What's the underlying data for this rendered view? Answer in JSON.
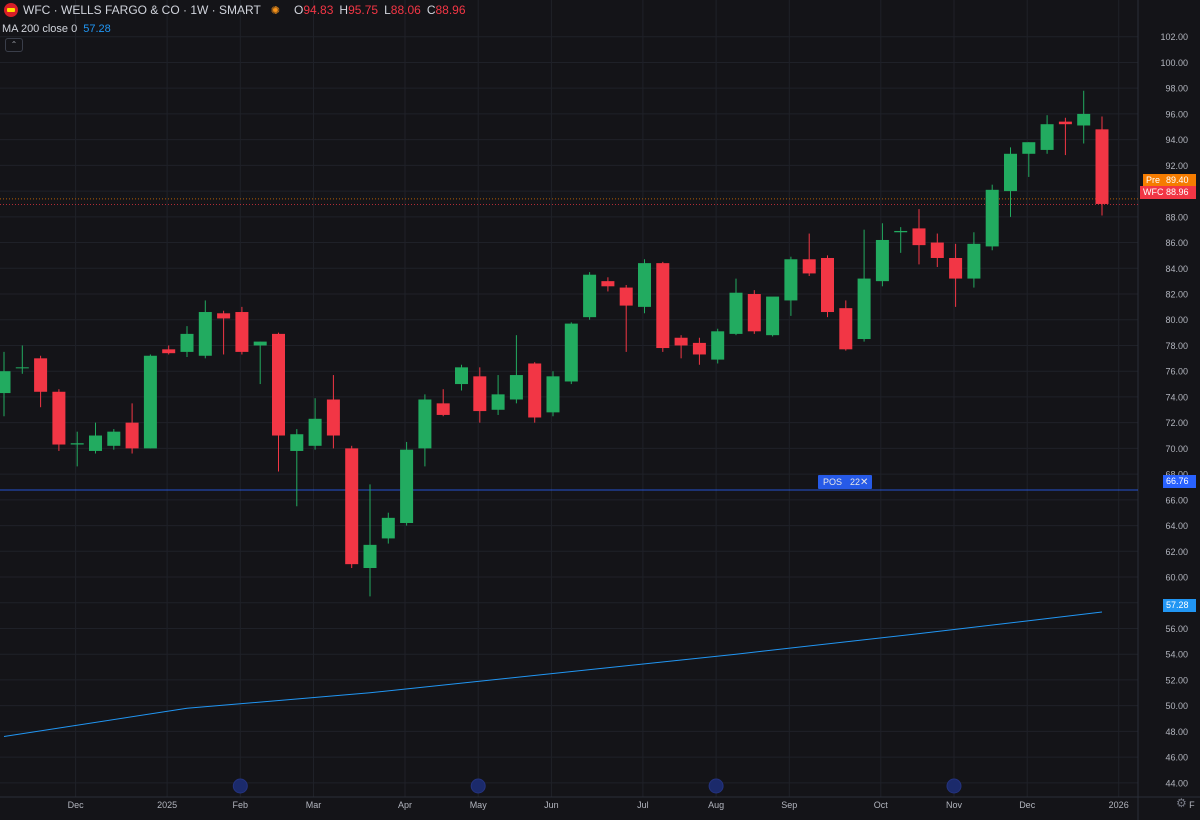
{
  "header": {
    "symbol_title": "WFC · WELLS FARGO & CO · 1W · SMART",
    "open_label": "O",
    "open": "94.83",
    "high_label": "H",
    "high": "95.75",
    "low_label": "L",
    "low": "88.06",
    "close_label": "C",
    "close": "88.96"
  },
  "indicator": {
    "name": "MA 200 close 0",
    "value": "57.28"
  },
  "price_tags": {
    "pre_label": "Pre",
    "pre_value": "89.40",
    "last_label": "WFC",
    "last_value": "88.96",
    "position_value": "66.76",
    "ma_value": "57.28"
  },
  "position": {
    "label": "POS",
    "qty": "22",
    "close_symbol": "✕"
  },
  "colors": {
    "up": "#22ab60",
    "down": "#f23645",
    "ma": "#2196f3",
    "position": "#2962ff",
    "pre": "#f57c00"
  },
  "chart_data": {
    "type": "candlestick",
    "timeframe": "1W",
    "y_ticks": [
      44,
      46,
      48,
      50,
      52,
      54,
      56,
      58,
      60,
      62,
      64,
      66,
      68,
      70,
      72,
      74,
      76,
      78,
      80,
      82,
      84,
      86,
      88,
      90,
      92,
      94,
      96,
      98,
      100,
      102
    ],
    "ylim": [
      42.9,
      103.3
    ],
    "x_ticks": [
      {
        "label": "Dec",
        "week": 2
      },
      {
        "label": "2025",
        "week": 7
      },
      {
        "label": "Feb",
        "week": 11
      },
      {
        "label": "Mar",
        "week": 15
      },
      {
        "label": "Apr",
        "week": 20
      },
      {
        "label": "May",
        "week": 24
      },
      {
        "label": "Jun",
        "week": 28
      },
      {
        "label": "Jul",
        "week": 33
      },
      {
        "label": "Aug",
        "week": 37
      },
      {
        "label": "Sep",
        "week": 41
      },
      {
        "label": "Oct",
        "week": 46
      },
      {
        "label": "Nov",
        "week": 50
      },
      {
        "label": "Dec",
        "week": 54
      },
      {
        "label": "2026",
        "week": 59
      },
      {
        "label": "F",
        "week": 63
      }
    ],
    "event_markers": [
      11,
      24,
      37,
      50
    ],
    "candles": [
      {
        "o": 74.3,
        "h": 77.5,
        "l": 72.5,
        "c": 76.0
      },
      {
        "o": 76.3,
        "h": 78.0,
        "l": 75.8,
        "c": 76.3
      },
      {
        "o": 77.0,
        "h": 77.2,
        "l": 73.2,
        "c": 74.4
      },
      {
        "o": 74.4,
        "h": 74.6,
        "l": 69.8,
        "c": 70.3
      },
      {
        "o": 70.3,
        "h": 71.3,
        "l": 68.6,
        "c": 70.4
      },
      {
        "o": 69.8,
        "h": 72.0,
        "l": 69.6,
        "c": 71.0
      },
      {
        "o": 70.2,
        "h": 71.5,
        "l": 69.9,
        "c": 71.3
      },
      {
        "o": 72.0,
        "h": 73.5,
        "l": 69.6,
        "c": 70.0
      },
      {
        "o": 70.0,
        "h": 77.3,
        "l": 70.0,
        "c": 77.2
      },
      {
        "o": 77.7,
        "h": 78.0,
        "l": 77.3,
        "c": 77.4
      },
      {
        "o": 77.5,
        "h": 79.5,
        "l": 77.1,
        "c": 78.9
      },
      {
        "o": 77.2,
        "h": 81.5,
        "l": 77.0,
        "c": 80.6
      },
      {
        "o": 80.5,
        "h": 80.7,
        "l": 77.3,
        "c": 80.1
      },
      {
        "o": 80.6,
        "h": 81.0,
        "l": 77.3,
        "c": 77.5
      },
      {
        "o": 78.0,
        "h": 78.3,
        "l": 75.0,
        "c": 78.3
      },
      {
        "o": 78.9,
        "h": 79.0,
        "l": 68.2,
        "c": 71.0
      },
      {
        "o": 69.8,
        "h": 71.5,
        "l": 65.5,
        "c": 71.1
      },
      {
        "o": 70.2,
        "h": 73.9,
        "l": 69.9,
        "c": 72.3
      },
      {
        "o": 73.8,
        "h": 75.7,
        "l": 70.0,
        "c": 71.0
      },
      {
        "o": 70.0,
        "h": 70.2,
        "l": 60.7,
        "c": 61.0
      },
      {
        "o": 60.7,
        "h": 67.2,
        "l": 58.5,
        "c": 62.5
      },
      {
        "o": 63.0,
        "h": 65.0,
        "l": 62.6,
        "c": 64.6
      },
      {
        "o": 64.2,
        "h": 70.5,
        "l": 64.0,
        "c": 69.9
      },
      {
        "o": 70.0,
        "h": 74.2,
        "l": 68.6,
        "c": 73.8
      },
      {
        "o": 73.5,
        "h": 74.6,
        "l": 72.5,
        "c": 72.6
      },
      {
        "o": 75.0,
        "h": 76.5,
        "l": 74.5,
        "c": 76.3
      },
      {
        "o": 75.6,
        "h": 76.3,
        "l": 72.0,
        "c": 72.9
      },
      {
        "o": 73.0,
        "h": 75.7,
        "l": 72.6,
        "c": 74.2
      },
      {
        "o": 73.8,
        "h": 78.8,
        "l": 73.5,
        "c": 75.7
      },
      {
        "o": 76.6,
        "h": 76.7,
        "l": 72.0,
        "c": 72.4
      },
      {
        "o": 72.8,
        "h": 76.0,
        "l": 72.5,
        "c": 75.6
      },
      {
        "o": 75.2,
        "h": 79.8,
        "l": 75.0,
        "c": 79.7
      },
      {
        "o": 80.2,
        "h": 83.7,
        "l": 80.0,
        "c": 83.5
      },
      {
        "o": 83.0,
        "h": 83.3,
        "l": 82.2,
        "c": 82.6
      },
      {
        "o": 82.5,
        "h": 82.7,
        "l": 77.5,
        "c": 81.1
      },
      {
        "o": 81.0,
        "h": 84.7,
        "l": 80.5,
        "c": 84.4
      },
      {
        "o": 84.4,
        "h": 84.5,
        "l": 77.5,
        "c": 77.8
      },
      {
        "o": 78.6,
        "h": 78.8,
        "l": 77.0,
        "c": 78.0
      },
      {
        "o": 78.2,
        "h": 78.6,
        "l": 76.5,
        "c": 77.3
      },
      {
        "o": 76.9,
        "h": 79.3,
        "l": 76.6,
        "c": 79.1
      },
      {
        "o": 78.9,
        "h": 83.2,
        "l": 78.8,
        "c": 82.1
      },
      {
        "o": 82.0,
        "h": 82.3,
        "l": 78.9,
        "c": 79.1
      },
      {
        "o": 78.8,
        "h": 81.6,
        "l": 78.7,
        "c": 81.8
      },
      {
        "o": 81.5,
        "h": 84.9,
        "l": 80.3,
        "c": 84.7
      },
      {
        "o": 84.7,
        "h": 86.7,
        "l": 83.4,
        "c": 83.6
      },
      {
        "o": 84.8,
        "h": 85.0,
        "l": 80.2,
        "c": 80.6
      },
      {
        "o": 80.9,
        "h": 81.5,
        "l": 77.6,
        "c": 77.7
      },
      {
        "o": 78.5,
        "h": 87.0,
        "l": 78.3,
        "c": 83.2
      },
      {
        "o": 83.0,
        "h": 87.5,
        "l": 82.6,
        "c": 86.2
      },
      {
        "o": 86.8,
        "h": 87.2,
        "l": 85.2,
        "c": 86.9
      },
      {
        "o": 87.1,
        "h": 88.6,
        "l": 84.3,
        "c": 85.8
      },
      {
        "o": 86.0,
        "h": 86.7,
        "l": 84.1,
        "c": 84.8
      },
      {
        "o": 84.8,
        "h": 85.9,
        "l": 81.0,
        "c": 83.2
      },
      {
        "o": 83.2,
        "h": 86.8,
        "l": 82.5,
        "c": 85.9
      },
      {
        "o": 85.7,
        "h": 90.5,
        "l": 85.4,
        "c": 90.1
      },
      {
        "o": 90.0,
        "h": 93.4,
        "l": 88.0,
        "c": 92.9
      },
      {
        "o": 92.9,
        "h": 93.8,
        "l": 91.1,
        "c": 93.8
      },
      {
        "o": 93.2,
        "h": 95.9,
        "l": 92.9,
        "c": 95.2
      },
      {
        "o": 95.4,
        "h": 95.7,
        "l": 92.8,
        "c": 95.2
      },
      {
        "o": 95.1,
        "h": 97.8,
        "l": 93.7,
        "c": 96.0
      },
      {
        "o": 94.8,
        "h": 95.8,
        "l": 88.1,
        "c": 89.0
      }
    ],
    "ma200": [
      {
        "week": 0,
        "value": 47.6
      },
      {
        "week": 10,
        "value": 49.8
      },
      {
        "week": 20,
        "value": 51.0
      },
      {
        "week": 30,
        "value": 52.5
      },
      {
        "week": 40,
        "value": 54.0
      },
      {
        "week": 50,
        "value": 55.6
      },
      {
        "week": 56,
        "value": 56.6
      },
      {
        "week": 60,
        "value": 57.28
      }
    ],
    "pre_market": 89.4,
    "position_price": 66.76,
    "last_price": 88.96
  }
}
